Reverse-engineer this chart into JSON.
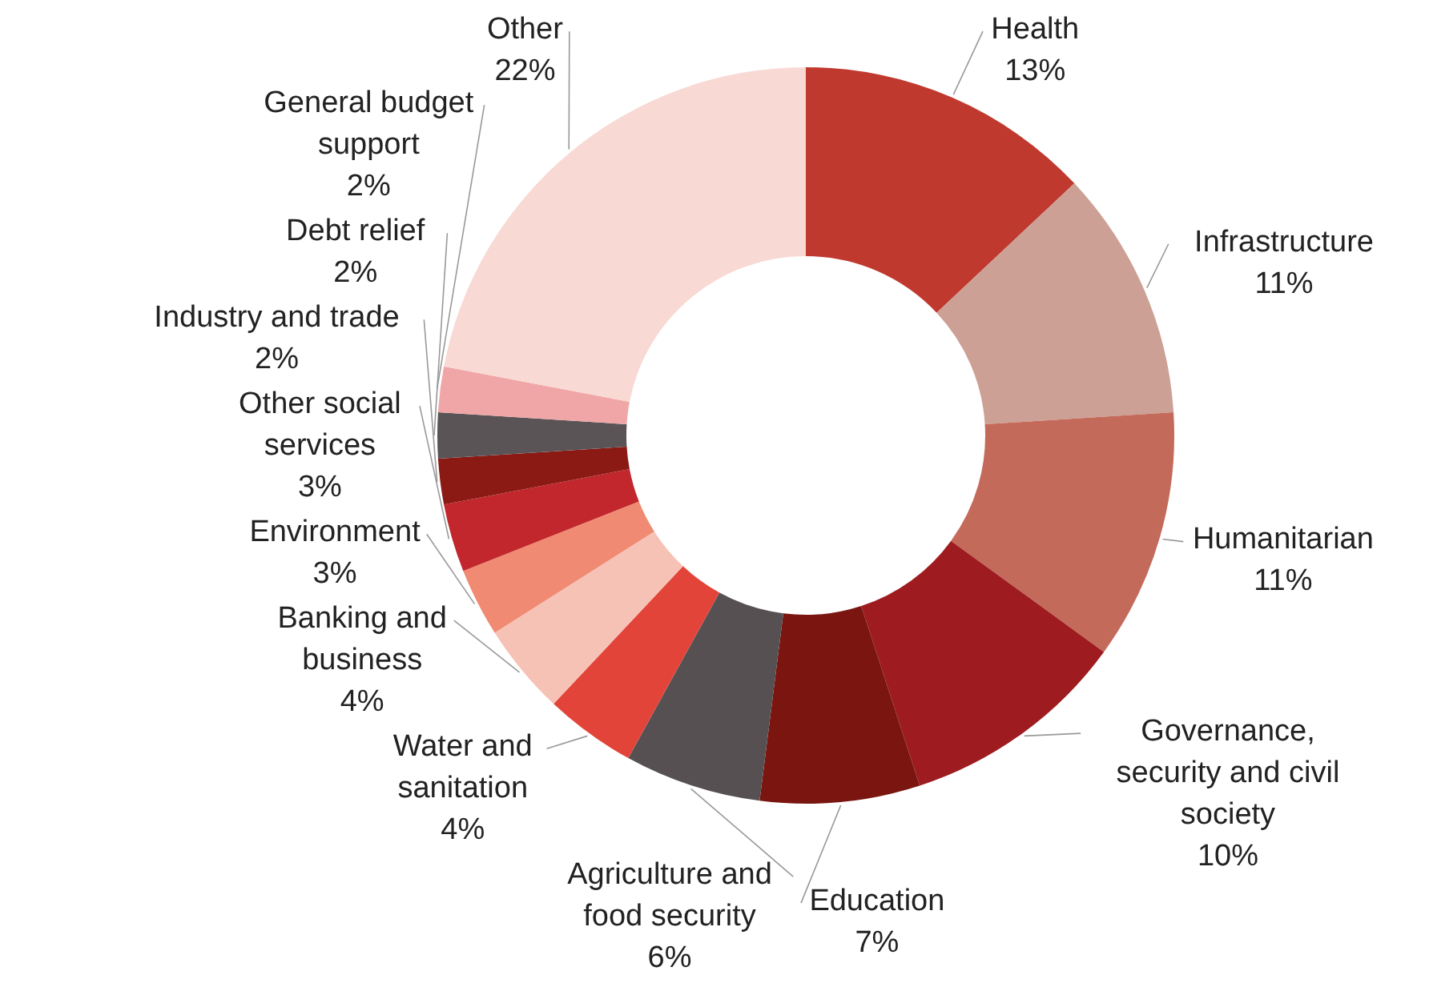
{
  "chart_data": {
    "type": "donut",
    "categories": [
      "Health",
      "Infrastructure",
      "Humanitarian",
      "Governance, security and civil society",
      "Education",
      "Agriculture and food security",
      "Water and sanitation",
      "Banking and business",
      "Environment",
      "Other social services",
      "Industry and trade",
      "Debt relief",
      "General budget support",
      "Other"
    ],
    "values": [
      13,
      11,
      11,
      10,
      7,
      6,
      4,
      4,
      3,
      3,
      2,
      2,
      2,
      22
    ],
    "value_labels": [
      "13%",
      "11%",
      "11%",
      "10%",
      "7%",
      "6%",
      "4%",
      "4%",
      "3%",
      "3%",
      "2%",
      "2%",
      "2%",
      "22%"
    ],
    "colors": [
      "#c0392f",
      "#cda095",
      "#c46a5a",
      "#9e1c20",
      "#7a1510",
      "#575052",
      "#e3443a",
      "#f7c2b6",
      "#f08a72",
      "#c1272d",
      "#8b1a14",
      "#5b5457",
      "#f0a6a6",
      "#f8d9d4"
    ]
  }
}
